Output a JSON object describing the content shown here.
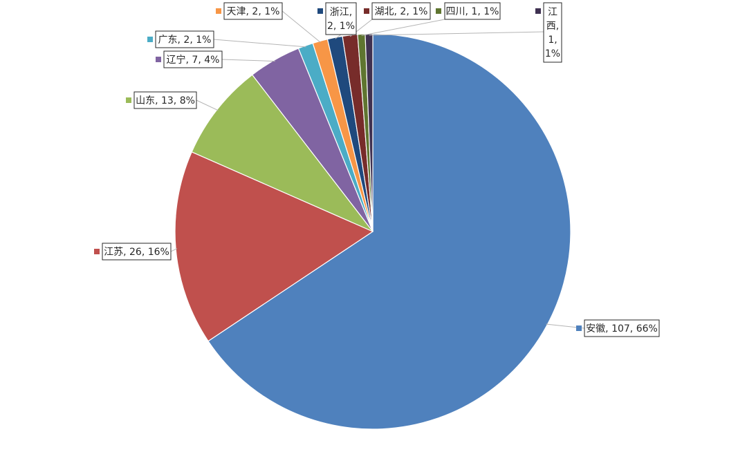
{
  "chart_data": {
    "type": "pie",
    "title": "",
    "categories": [
      "安徽",
      "江苏",
      "山东",
      "辽宁",
      "广东",
      "天津",
      "浙江",
      "湖北",
      "四川",
      "江西"
    ],
    "values": [
      107,
      26,
      13,
      7,
      2,
      2,
      2,
      2,
      1,
      1
    ],
    "percents": [
      "66%",
      "16%",
      "8%",
      "4%",
      "1%",
      "1%",
      "1%",
      "1%",
      "1%",
      "1%"
    ],
    "colors": [
      "#4f81bd",
      "#c0504d",
      "#9bbb59",
      "#8064a2",
      "#4bacc6",
      "#f79646",
      "#1f497d",
      "#772c2a",
      "#5f7530",
      "#3f3151"
    ],
    "data_labels": [
      [
        "安徽, 107, 66%"
      ],
      [
        "江苏, 26, 16%"
      ],
      [
        "山东, 13, 8%"
      ],
      [
        "辽宁, 7, 4%"
      ],
      [
        "广东, 2, 1%"
      ],
      [
        "天津, 2, 1%"
      ],
      [
        "浙江,",
        "2, 1%"
      ],
      [
        "湖北, 2, 1%"
      ],
      [
        "四川, 1, 1%"
      ],
      [
        "江",
        "西,",
        "1,",
        "1%"
      ]
    ],
    "start_angle_deg": 0,
    "direction": "clockwise",
    "legend": "none"
  }
}
